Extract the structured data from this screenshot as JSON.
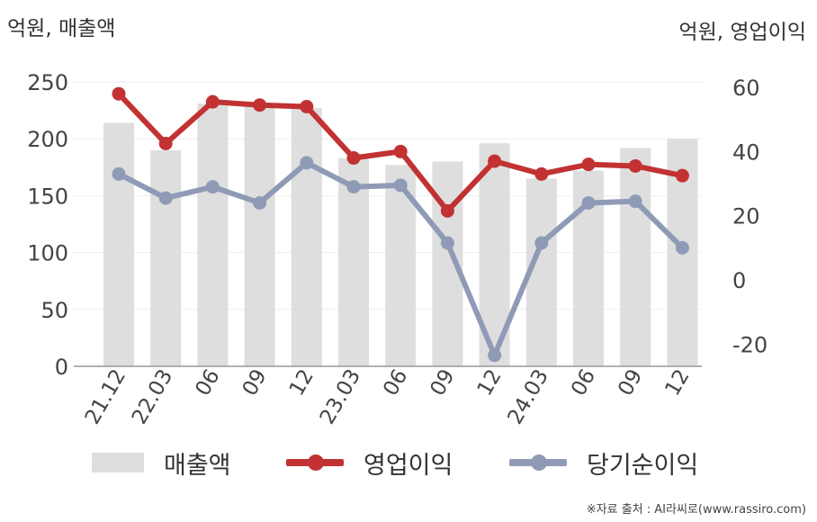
{
  "units": {
    "left": "억원, 매출액",
    "right": "억원, 영업이익"
  },
  "source": "※자료 출처 : AI라씨로(www.rassiro.com)",
  "colors": {
    "bar": "#dedede",
    "op": "#c23232",
    "net": "#8f9bb6",
    "axis": "#555555",
    "grid": "#eeeeee"
  },
  "legend": [
    {
      "label": "매출액",
      "type": "bar"
    },
    {
      "label": "영업이익",
      "type": "line"
    },
    {
      "label": "당기순이익",
      "type": "line"
    }
  ],
  "chart_data": {
    "type": "bar",
    "categories": [
      "21.12",
      "22.03",
      "06",
      "09",
      "12",
      "23.03",
      "06",
      "09",
      "12",
      "24.03",
      "06",
      "09",
      "12"
    ],
    "series": [
      {
        "name": "매출액",
        "type": "bar",
        "axis": "left",
        "values": [
          214,
          190,
          231,
          230,
          227,
          183,
          177,
          180,
          196,
          165,
          172,
          192,
          200
        ]
      },
      {
        "name": "영업이익",
        "type": "line",
        "axis": "right",
        "values": [
          58,
          42.5,
          55.5,
          54.5,
          54,
          38,
          40,
          21.5,
          37,
          33,
          36,
          35.5,
          32.5
        ]
      },
      {
        "name": "당기순이익",
        "type": "line",
        "axis": "right",
        "values": [
          33,
          25.5,
          29,
          24,
          36.5,
          29,
          29.5,
          11.5,
          -23.5,
          11.5,
          24,
          24.5,
          10
        ]
      }
    ],
    "y_left": {
      "ylim": [
        0,
        250
      ],
      "ticks": [
        0,
        50,
        100,
        150,
        200,
        250
      ]
    },
    "y_right": {
      "ylim": [
        -30,
        65
      ],
      "ticks": [
        -20,
        0,
        20,
        40,
        60
      ]
    },
    "legend_position": "bottom",
    "grid": true
  }
}
